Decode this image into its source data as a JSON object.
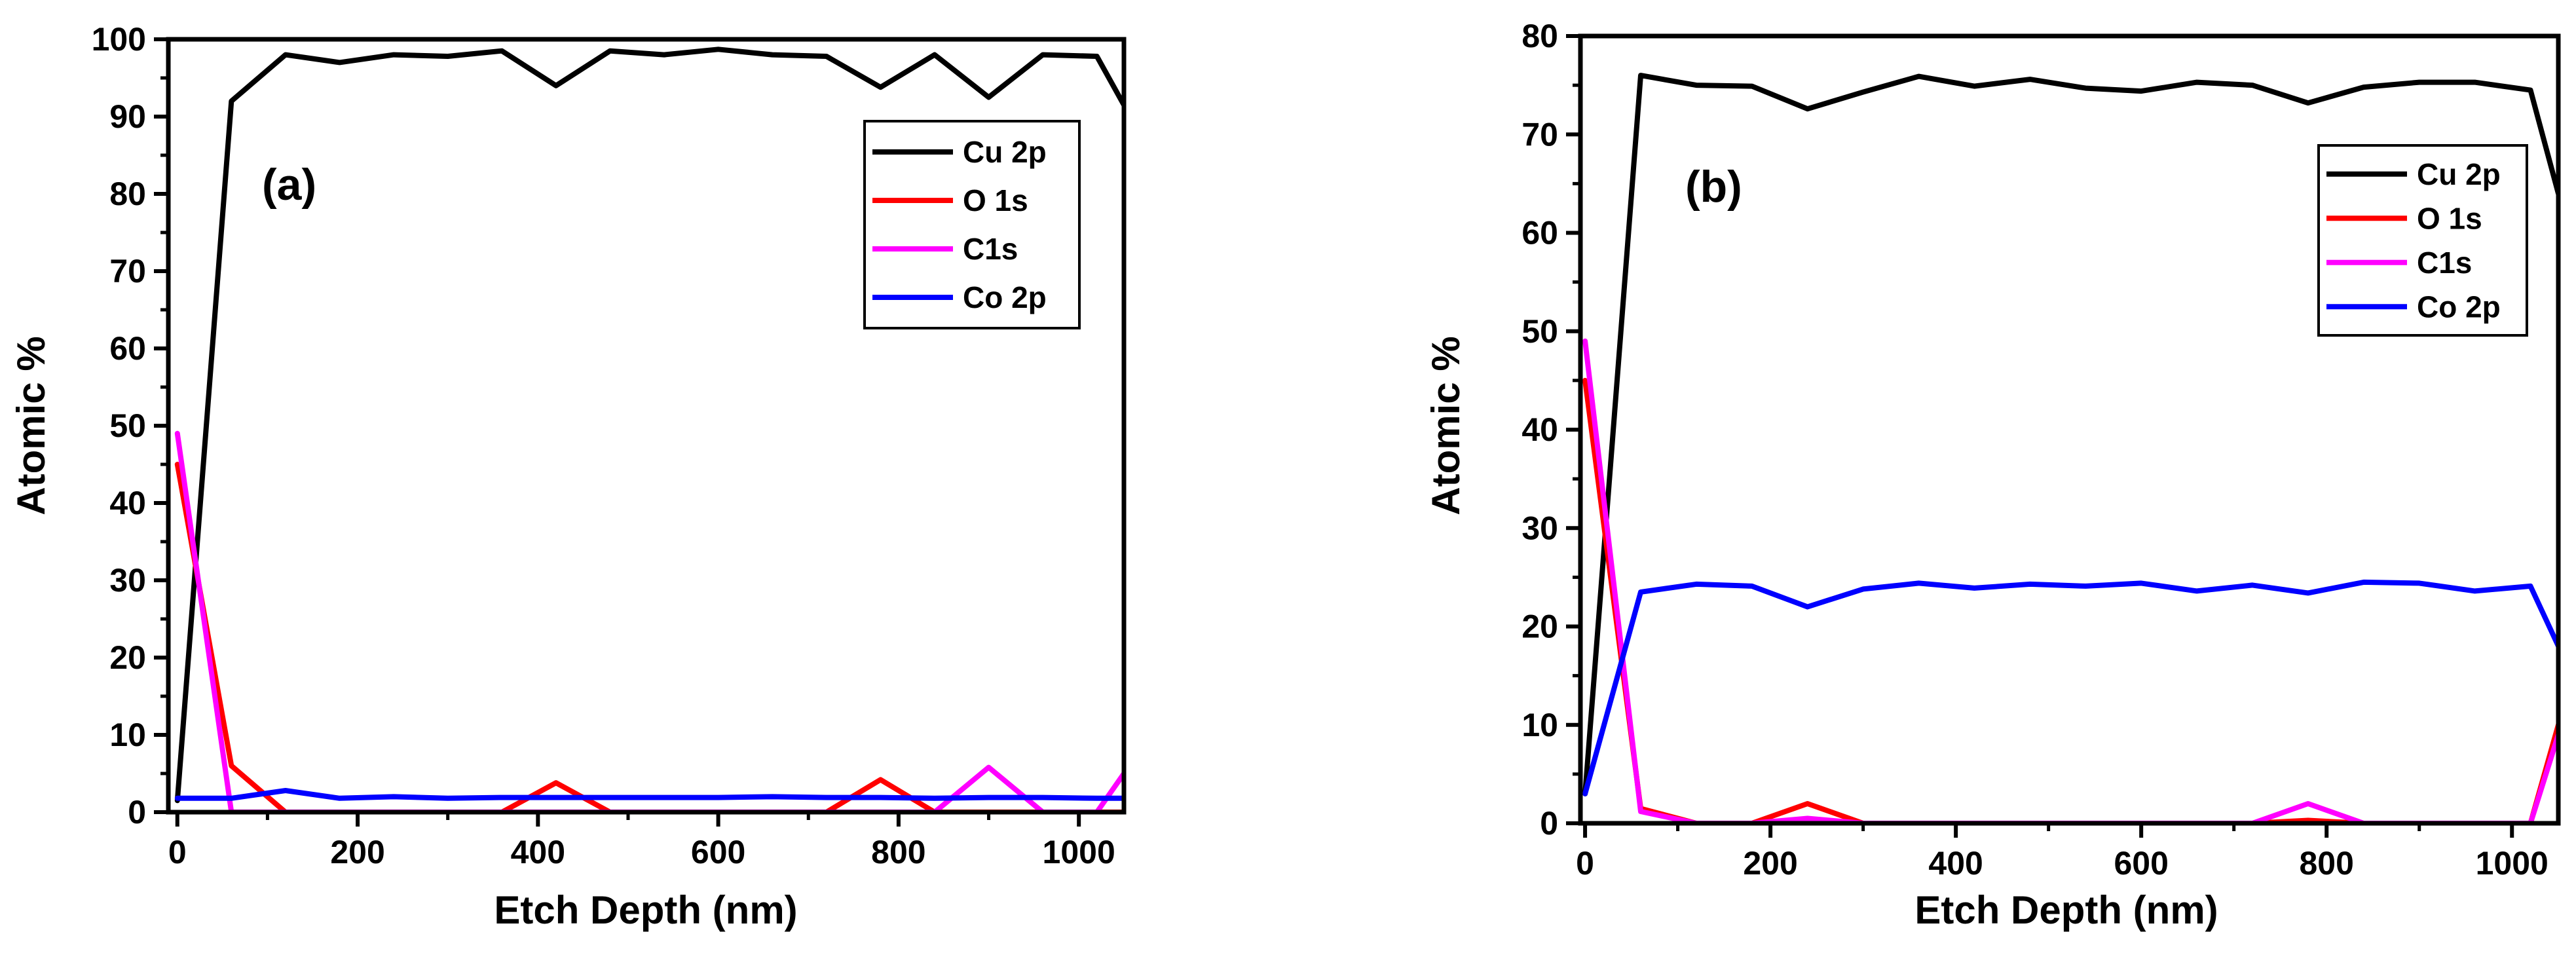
{
  "chart_data": [
    {
      "type": "line",
      "panel_label": "(a)",
      "xlabel": "Etch Depth (nm)",
      "ylabel": "Atomic %",
      "xlim": [
        -10,
        1050
      ],
      "ylim": [
        0,
        100
      ],
      "x_ticks": [
        "0",
        "200",
        "400",
        "600",
        "800",
        "1000"
      ],
      "x_tick_values": [
        0,
        200,
        400,
        600,
        800,
        1000
      ],
      "y_ticks": [
        "0",
        "10",
        "20",
        "30",
        "40",
        "50",
        "60",
        "70",
        "80",
        "90",
        "100"
      ],
      "y_tick_values": [
        0,
        10,
        20,
        30,
        40,
        50,
        60,
        70,
        80,
        90,
        100
      ],
      "x": [
        0,
        60,
        120,
        180,
        240,
        300,
        360,
        420,
        480,
        540,
        600,
        660,
        720,
        780,
        840,
        900,
        960,
        1020,
        1050
      ],
      "series": [
        {
          "name": "Cu 2p",
          "color": "#000000",
          "values": [
            1.5,
            92,
            98,
            97,
            98,
            97.8,
            98.5,
            94,
            98.5,
            98,
            98.7,
            98,
            97.8,
            93.8,
            98,
            92.5,
            98,
            97.8,
            91.5
          ]
        },
        {
          "name": "O 1s",
          "color": "#ff0000",
          "values": [
            45,
            6,
            0,
            0,
            0,
            0,
            0,
            3.8,
            0,
            0,
            0,
            0,
            0,
            4.2,
            0,
            0,
            0,
            0,
            0
          ]
        },
        {
          "name": "C1s",
          "color": "#ff00ff",
          "values": [
            49,
            0,
            0,
            0,
            0,
            0,
            0,
            0,
            0,
            0,
            0,
            0,
            0,
            0,
            0,
            5.8,
            0,
            0,
            5
          ]
        },
        {
          "name": "Co 2p",
          "color": "#0000ff",
          "values": [
            1.8,
            1.8,
            2.8,
            1.8,
            2,
            1.8,
            1.9,
            1.9,
            1.9,
            1.9,
            1.9,
            2,
            1.9,
            1.9,
            1.8,
            1.9,
            1.9,
            1.8,
            1.8
          ]
        }
      ]
    },
    {
      "type": "line",
      "panel_label": "(b)",
      "xlabel": "Etch Depth (nm)",
      "ylabel": "Atomic %",
      "xlim": [
        -5,
        1050
      ],
      "ylim": [
        0,
        80
      ],
      "x_ticks": [
        "0",
        "200",
        "400",
        "600",
        "800",
        "1000"
      ],
      "x_tick_values": [
        0,
        200,
        400,
        600,
        800,
        1000
      ],
      "y_ticks": [
        "0",
        "10",
        "20",
        "30",
        "40",
        "50",
        "60",
        "70",
        "80"
      ],
      "y_tick_values": [
        0,
        10,
        20,
        30,
        40,
        50,
        60,
        70,
        80
      ],
      "x": [
        0,
        60,
        120,
        180,
        240,
        300,
        360,
        420,
        480,
        540,
        600,
        660,
        720,
        780,
        840,
        900,
        960,
        1020,
        1050
      ],
      "series": [
        {
          "name": "Cu 2p",
          "color": "#000000",
          "values": [
            3,
            76,
            75,
            74.9,
            72.6,
            74.3,
            75.9,
            74.9,
            75.6,
            74.7,
            74.4,
            75.3,
            75,
            73.2,
            74.8,
            75.3,
            75.3,
            74.5,
            64
          ]
        },
        {
          "name": "O 1s",
          "color": "#ff0000",
          "values": [
            45,
            1.5,
            0,
            0,
            2,
            0,
            0,
            0,
            0,
            0,
            0,
            0,
            0,
            0.3,
            0,
            0,
            0,
            0,
            10
          ]
        },
        {
          "name": "C1s",
          "color": "#ff00ff",
          "values": [
            49,
            1.2,
            0,
            0,
            0.5,
            0,
            0,
            0,
            0,
            0,
            0,
            0,
            0,
            2,
            0,
            0,
            0,
            0,
            9
          ]
        },
        {
          "name": "Co 2p",
          "color": "#0000ff",
          "values": [
            3,
            23.5,
            24.3,
            24.1,
            22,
            23.8,
            24.4,
            23.9,
            24.3,
            24.1,
            24.4,
            23.6,
            24.2,
            23.4,
            24.5,
            24.4,
            23.6,
            24.1,
            18
          ]
        }
      ]
    }
  ]
}
